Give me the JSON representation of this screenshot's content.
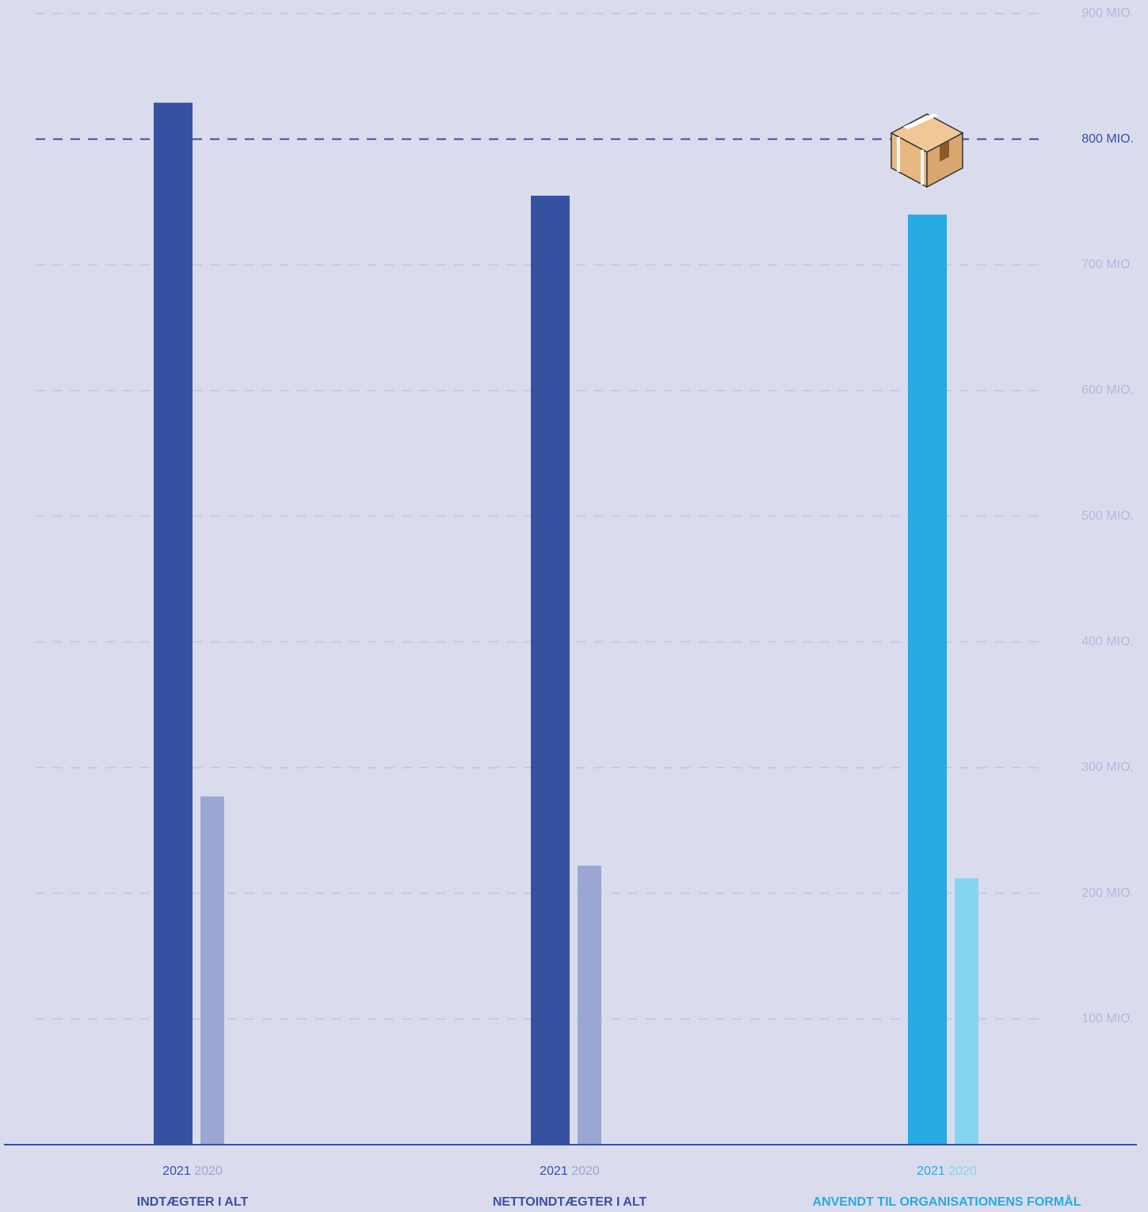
{
  "chart_data": {
    "type": "bar",
    "categories": [
      "INDTÆGTER I ALT",
      "NETTOINDTÆGTER I ALT",
      "ANVENDT TIL ORGANISATIONENS FORMÅL"
    ],
    "series": [
      {
        "name": "2021",
        "colors": [
          "#3751a2",
          "#3751a2",
          "#27aae1"
        ],
        "values": [
          829,
          755,
          740
        ]
      },
      {
        "name": "2020",
        "colors": [
          "#9ca6d3",
          "#9ca6d3",
          "#84d4f2"
        ],
        "values": [
          277,
          222,
          212
        ]
      }
    ],
    "ylim": [
      0,
      900
    ],
    "yticks": [
      {
        "value": 100,
        "label": "100 MIO."
      },
      {
        "value": 200,
        "label": "200 MIO."
      },
      {
        "value": 300,
        "label": "300 MIO."
      },
      {
        "value": 400,
        "label": "400 MIO."
      },
      {
        "value": 500,
        "label": "500 MIO."
      },
      {
        "value": 600,
        "label": "600 MIO."
      },
      {
        "value": 700,
        "label": "700 MIO."
      },
      {
        "value": 800,
        "label": "800 MIO."
      },
      {
        "value": 900,
        "label": "900 MIO."
      }
    ],
    "highlight_ytick": 800,
    "grid": true
  }
}
